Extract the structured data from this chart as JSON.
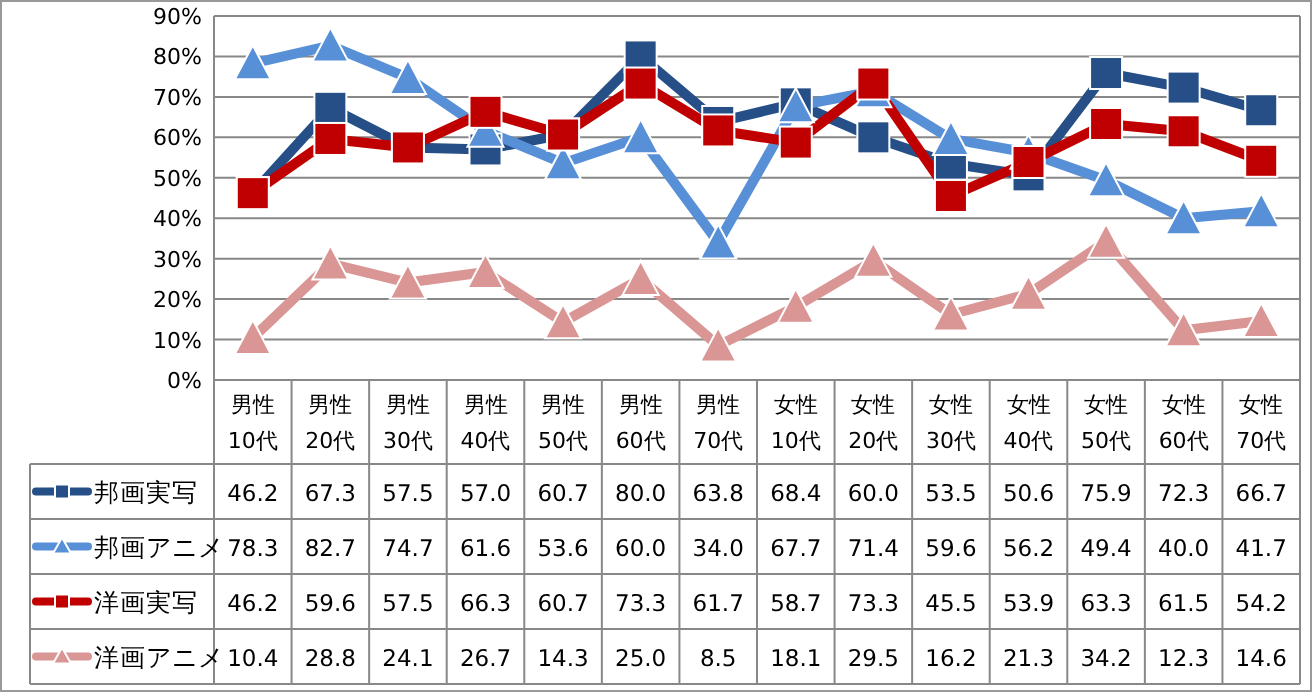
{
  "chart_data": {
    "type": "line",
    "categories": [
      "男性 10代",
      "男性 20代",
      "男性 30代",
      "男性 40代",
      "男性 50代",
      "男性 60代",
      "男性 70代",
      "女性 10代",
      "女性 20代",
      "女性 30代",
      "女性 40代",
      "女性 50代",
      "女性 60代",
      "女性 70代"
    ],
    "series": [
      {
        "name": "邦画実写",
        "color": "#254f86",
        "marker": "square",
        "values": [
          46.2,
          67.3,
          57.5,
          57.0,
          60.7,
          80.0,
          63.8,
          68.4,
          60.0,
          53.5,
          50.6,
          75.9,
          72.3,
          66.7
        ],
        "value_labels": [
          "46.2",
          "67.3",
          "57.5",
          "57.0",
          "60.7",
          "80.0",
          "63.8",
          "68.4",
          "60.0",
          "53.5",
          "50.6",
          "75.9",
          "72.3",
          "66.7"
        ]
      },
      {
        "name": "邦画アニメ",
        "color": "#5890d8",
        "marker": "triangle",
        "values": [
          78.3,
          82.7,
          74.7,
          61.6,
          53.6,
          60.0,
          34.0,
          67.7,
          71.4,
          59.6,
          56.2,
          49.4,
          40.0,
          41.7
        ],
        "value_labels": [
          "78.3",
          "82.7",
          "74.7",
          "61.6",
          "53.6",
          "60.0",
          "34.0",
          "67.7",
          "71.4",
          "59.6",
          "56.2",
          "49.4",
          "40.0",
          "41.7"
        ]
      },
      {
        "name": "洋画実写",
        "color": "#c00000",
        "marker": "square",
        "values": [
          46.2,
          59.6,
          57.5,
          66.3,
          60.7,
          73.3,
          61.7,
          58.7,
          73.3,
          45.5,
          53.9,
          63.3,
          61.5,
          54.2
        ],
        "value_labels": [
          "46.2",
          "59.6",
          "57.5",
          "66.3",
          "60.7",
          "73.3",
          "61.7",
          "58.7",
          "73.3",
          "45.5",
          "53.9",
          "63.3",
          "61.5",
          "54.2"
        ]
      },
      {
        "name": "洋画アニメ",
        "color": "#d99694",
        "marker": "triangle",
        "values": [
          10.4,
          28.8,
          24.1,
          26.7,
          14.3,
          25.0,
          8.5,
          18.1,
          29.5,
          16.2,
          21.3,
          34.2,
          12.3,
          14.6
        ],
        "value_labels": [
          "10.4",
          "28.8",
          "24.1",
          "26.7",
          "14.3",
          "25.0",
          "8.5",
          "18.1",
          "29.5",
          "16.2",
          "21.3",
          "34.2",
          "12.3",
          "14.6"
        ]
      }
    ],
    "ylim": [
      0,
      90
    ],
    "yticks": [
      {
        "value": 0,
        "label": "0%"
      },
      {
        "value": 10,
        "label": "10%"
      },
      {
        "value": 20,
        "label": "20%"
      },
      {
        "value": 30,
        "label": "30%"
      },
      {
        "value": 40,
        "label": "40%"
      },
      {
        "value": 50,
        "label": "50%"
      },
      {
        "value": 60,
        "label": "60%"
      },
      {
        "value": 70,
        "label": "70%"
      },
      {
        "value": 80,
        "label": "80%"
      },
      {
        "value": 90,
        "label": "90%"
      }
    ],
    "grid": "y",
    "legend": "bottom left",
    "line_style": "solid"
  }
}
